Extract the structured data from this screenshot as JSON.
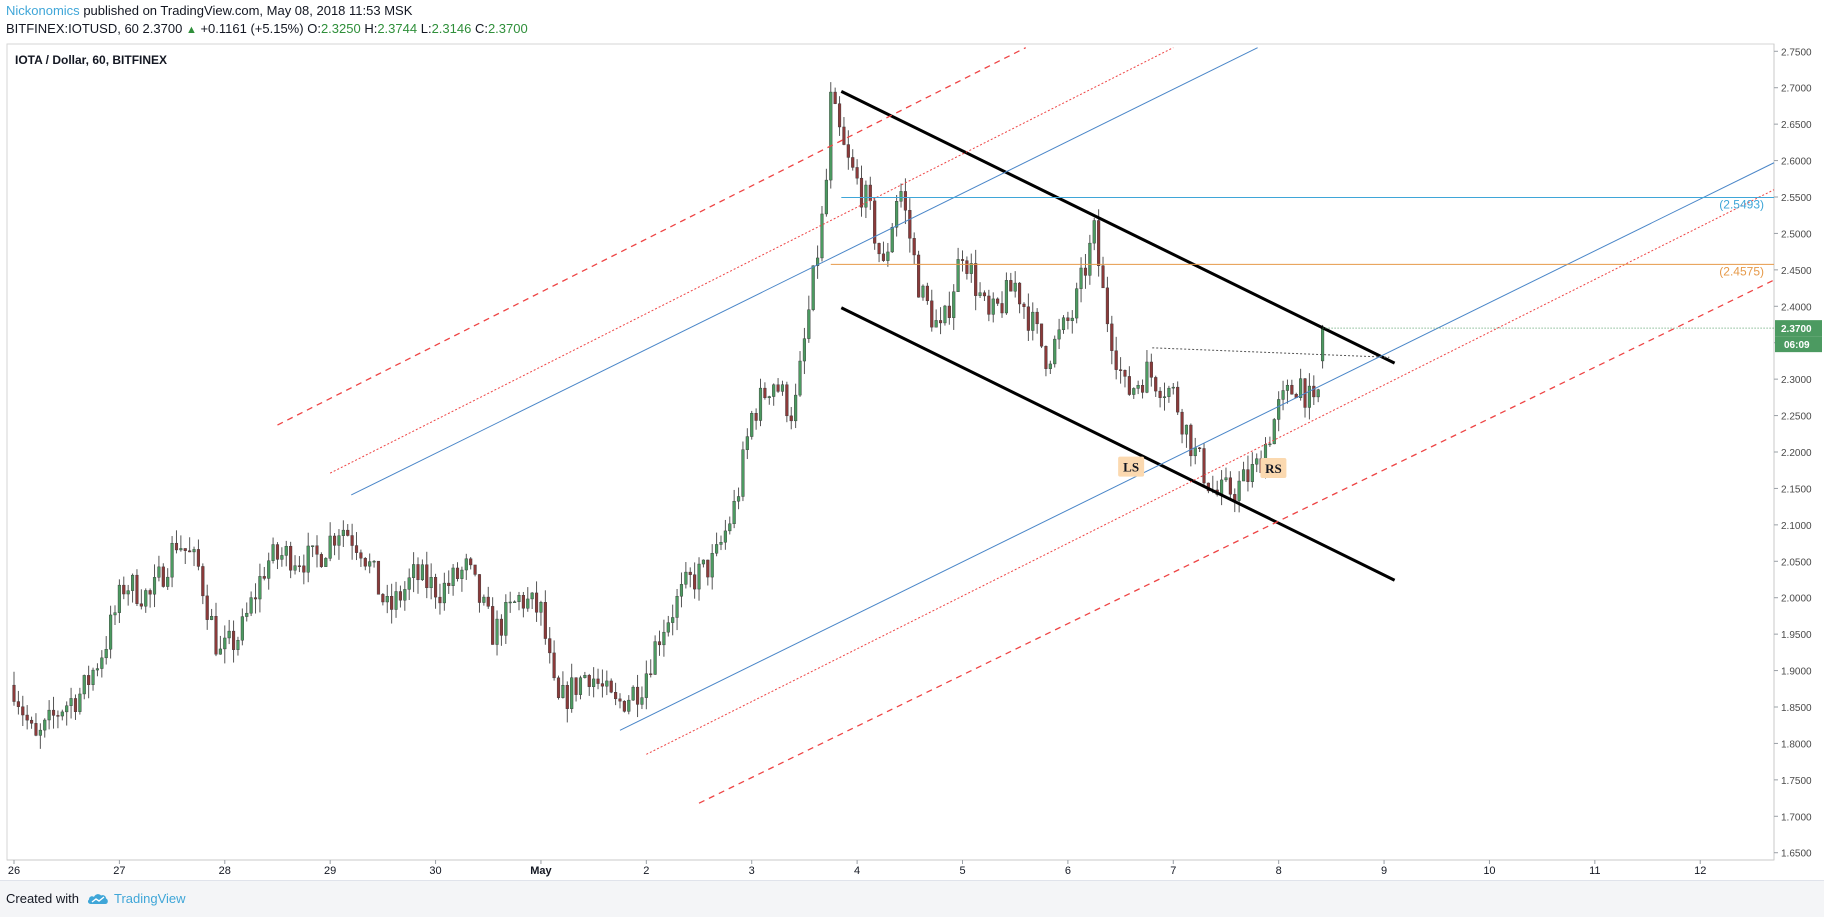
{
  "header": {
    "author": "Nickonomics",
    "published": "published on TradingView.com, May 08, 2018 11:53 MSK",
    "symbol": "BITFINEX:IOTUSD, 60",
    "last": "2.3700",
    "change": "+0.1161 (+5.15%)",
    "o_label": "O:",
    "o_val": "2.3250",
    "h_label": "H:",
    "h_val": "2.3744",
    "l_label": "L:",
    "l_val": "2.3146",
    "c_label": "C:",
    "c_val": "2.3700"
  },
  "footer": {
    "created": "Created with",
    "brand": "TradingView"
  },
  "colors": {
    "up": "#4c9a61",
    "down": "#8b3a3a",
    "blue_line": "#4a86c8",
    "red_dashed": "#ee4444",
    "orange_level": "#e69a4a",
    "cyan_level": "#3fa6d8",
    "price_badge": "#4c9a61",
    "annotation_bg": "#fbd9b0"
  },
  "chart_data": {
    "type": "candlestick",
    "title": "IOTA / Dollar, 60, BITFINEX",
    "ylim": [
      1.64,
      2.76
    ],
    "xlim_days": [
      0,
      16.7
    ],
    "y_ticks": [
      "2.7500",
      "2.7000",
      "2.6500",
      "2.6000",
      "2.5500",
      "2.5000",
      "2.4500",
      "2.4000",
      "2.3500",
      "2.3000",
      "2.2500",
      "2.2000",
      "2.1500",
      "2.1000",
      "2.0500",
      "2.0000",
      "1.9500",
      "1.9000",
      "1.8500",
      "1.8000",
      "1.7500",
      "1.7000",
      "1.6500"
    ],
    "x_ticks": [
      {
        "label": "26",
        "day": 0
      },
      {
        "label": "27",
        "day": 1
      },
      {
        "label": "28",
        "day": 2
      },
      {
        "label": "29",
        "day": 3
      },
      {
        "label": "30",
        "day": 4
      },
      {
        "label": "May",
        "day": 5
      },
      {
        "label": "2",
        "day": 6
      },
      {
        "label": "3",
        "day": 7
      },
      {
        "label": "4",
        "day": 8
      },
      {
        "label": "5",
        "day": 9
      },
      {
        "label": "6",
        "day": 10
      },
      {
        "label": "7",
        "day": 11
      },
      {
        "label": "8",
        "day": 12
      },
      {
        "label": "9",
        "day": 13
      },
      {
        "label": "10",
        "day": 14
      },
      {
        "label": "11",
        "day": 15
      },
      {
        "label": "12",
        "day": 16
      }
    ],
    "price_path": [
      [
        0.0,
        1.88
      ],
      [
        0.2,
        1.8
      ],
      [
        0.45,
        1.85
      ],
      [
        0.65,
        1.87
      ],
      [
        0.85,
        1.93
      ],
      [
        1.05,
        2.02
      ],
      [
        1.3,
        2.0
      ],
      [
        1.55,
        2.08
      ],
      [
        1.75,
        2.04
      ],
      [
        1.95,
        1.92
      ],
      [
        2.15,
        1.95
      ],
      [
        2.4,
        2.05
      ],
      [
        2.6,
        2.06
      ],
      [
        2.85,
        2.05
      ],
      [
        3.1,
        2.1
      ],
      [
        3.3,
        2.07
      ],
      [
        3.55,
        1.98
      ],
      [
        3.8,
        2.03
      ],
      [
        4.05,
        2.01
      ],
      [
        4.3,
        2.04
      ],
      [
        4.55,
        1.95
      ],
      [
        4.8,
        2.0
      ],
      [
        5.0,
        1.98
      ],
      [
        5.15,
        1.85
      ],
      [
        5.45,
        1.9
      ],
      [
        5.7,
        1.85
      ],
      [
        5.95,
        1.88
      ],
      [
        6.15,
        1.96
      ],
      [
        6.4,
        2.02
      ],
      [
        6.65,
        2.05
      ],
      [
        6.85,
        2.13
      ],
      [
        7.0,
        2.25
      ],
      [
        7.2,
        2.3
      ],
      [
        7.4,
        2.25
      ],
      [
        7.55,
        2.4
      ],
      [
        7.7,
        2.55
      ],
      [
        7.75,
        2.68
      ],
      [
        7.9,
        2.6
      ],
      [
        8.1,
        2.54
      ],
      [
        8.25,
        2.45
      ],
      [
        8.4,
        2.57
      ],
      [
        8.6,
        2.42
      ],
      [
        8.8,
        2.36
      ],
      [
        9.0,
        2.48
      ],
      [
        9.25,
        2.38
      ],
      [
        9.5,
        2.43
      ],
      [
        9.8,
        2.33
      ],
      [
        10.05,
        2.39
      ],
      [
        10.25,
        2.5
      ],
      [
        10.35,
        2.4
      ],
      [
        10.55,
        2.28
      ],
      [
        10.75,
        2.31
      ],
      [
        11.0,
        2.28
      ],
      [
        11.2,
        2.2
      ],
      [
        11.4,
        2.14
      ],
      [
        11.6,
        2.15
      ],
      [
        11.8,
        2.18
      ],
      [
        12.0,
        2.26
      ],
      [
        12.2,
        2.3
      ],
      [
        12.35,
        2.25
      ],
      [
        12.45,
        2.37
      ]
    ],
    "levels": [
      {
        "value": 2.5493,
        "label": "(2.5493)",
        "color": "#3fa6d8",
        "from_day": 7.85
      },
      {
        "value": 2.4575,
        "label": "(2.4575)",
        "color": "#e69a4a",
        "from_day": 7.75
      }
    ],
    "last_price": {
      "value": 2.37,
      "label": "2.3700",
      "countdown": "06:09"
    },
    "lines": [
      {
        "kind": "wedge-top",
        "points": [
          [
            7.85,
            2.695
          ],
          [
            13.1,
            2.322
          ]
        ],
        "color": "#000000",
        "width": 3
      },
      {
        "kind": "wedge-bottom",
        "points": [
          [
            7.85,
            2.398
          ],
          [
            13.1,
            2.024
          ]
        ],
        "color": "#000000",
        "width": 3
      },
      {
        "kind": "neckline",
        "points": [
          [
            10.8,
            2.343
          ],
          [
            13.05,
            2.33
          ]
        ],
        "color": "#555555",
        "width": 1,
        "dash": "2,2"
      },
      {
        "kind": "channel-upper",
        "points": [
          [
            3.2,
            2.141
          ],
          [
            11.8,
            2.755
          ]
        ],
        "color": "#4a86c8",
        "width": 1
      },
      {
        "kind": "channel-lower",
        "points": [
          [
            5.75,
            1.818
          ],
          [
            16.7,
            2.597
          ]
        ],
        "color": "#4a86c8",
        "width": 1
      },
      {
        "kind": "red-outer-upper",
        "points": [
          [
            2.5,
            2.237
          ],
          [
            9.6,
            2.755
          ]
        ],
        "color": "#ee4444",
        "width": 1.3,
        "dash": "6,5"
      },
      {
        "kind": "red-inner-upper",
        "points": [
          [
            3.0,
            2.171
          ],
          [
            11.0,
            2.755
          ]
        ],
        "color": "#ee4444",
        "width": 1,
        "dash": "2,2"
      },
      {
        "kind": "red-inner-lower",
        "points": [
          [
            6.0,
            1.785
          ],
          [
            16.7,
            2.56
          ]
        ],
        "color": "#ee4444",
        "width": 1,
        "dash": "2,2"
      },
      {
        "kind": "red-outer-lower",
        "points": [
          [
            6.5,
            1.718
          ],
          [
            16.7,
            2.436
          ]
        ],
        "color": "#ee4444",
        "width": 1.3,
        "dash": "6,5"
      }
    ],
    "annotations": [
      {
        "text": "LS",
        "day": 10.6,
        "value": 2.18
      },
      {
        "text": "RS",
        "day": 11.95,
        "value": 2.178
      }
    ]
  }
}
